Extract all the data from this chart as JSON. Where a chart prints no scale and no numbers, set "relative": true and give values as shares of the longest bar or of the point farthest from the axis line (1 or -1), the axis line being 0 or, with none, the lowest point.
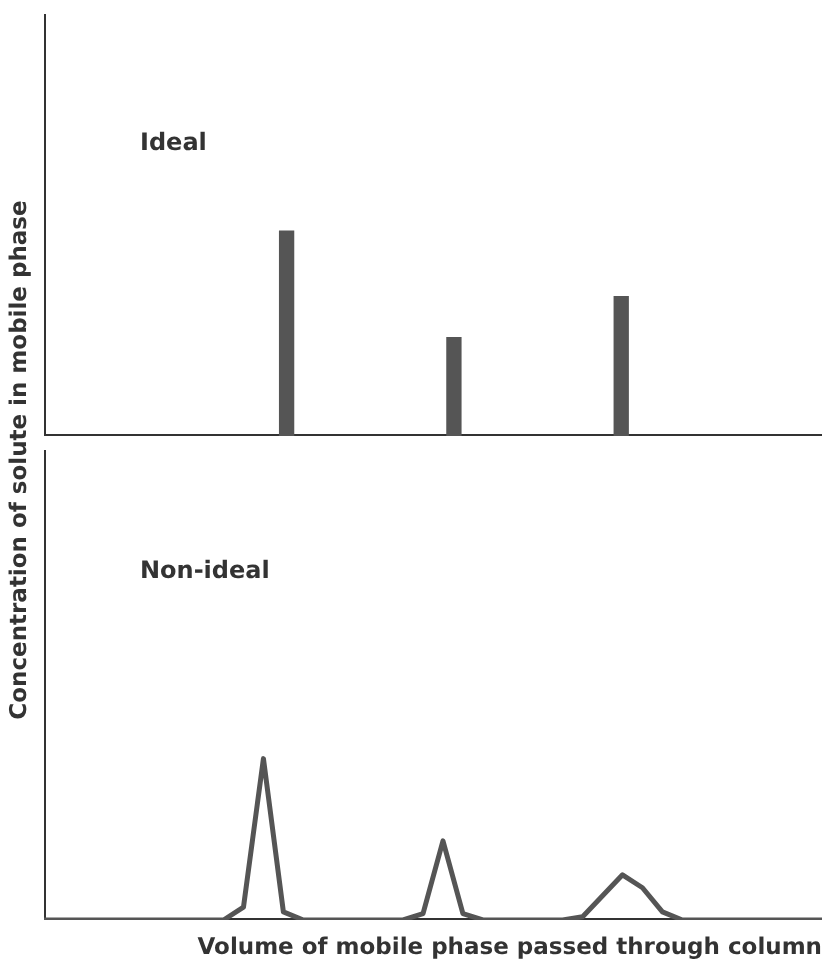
{
  "chart_data": [
    {
      "type": "bar",
      "title": "Ideal",
      "ylabel": "Concentration of solute in mobile phase",
      "relative": true,
      "color": "#555555",
      "categories": [
        null,
        null,
        null
      ],
      "values": [
        1,
        0.48,
        0.68
      ]
    },
    {
      "type": "line",
      "title": "Non-ideal",
      "xlabel": "Volume of mobile phase passed through column",
      "relative": true,
      "color": "#555555",
      "marker": "none",
      "categories": [
        null,
        null,
        null,
        null,
        null,
        null,
        null,
        null,
        null,
        null,
        null,
        null,
        null,
        null,
        null,
        null,
        null,
        null,
        null,
        null,
        null,
        null,
        null,
        null,
        null,
        null,
        null,
        null,
        null,
        null,
        null,
        null,
        null,
        null,
        null,
        null,
        null,
        null,
        null,
        null
      ],
      "values": [
        0,
        0,
        0,
        0,
        0,
        0,
        0,
        0,
        0,
        0,
        0.08,
        1,
        0.05,
        0,
        0,
        0,
        0,
        0,
        0,
        0.04,
        0.49,
        0.04,
        0,
        0,
        0,
        0,
        0,
        0.02,
        0.15,
        0.28,
        0.2,
        0.05,
        0,
        0,
        0,
        0,
        0,
        0,
        0,
        0
      ]
    }
  ]
}
